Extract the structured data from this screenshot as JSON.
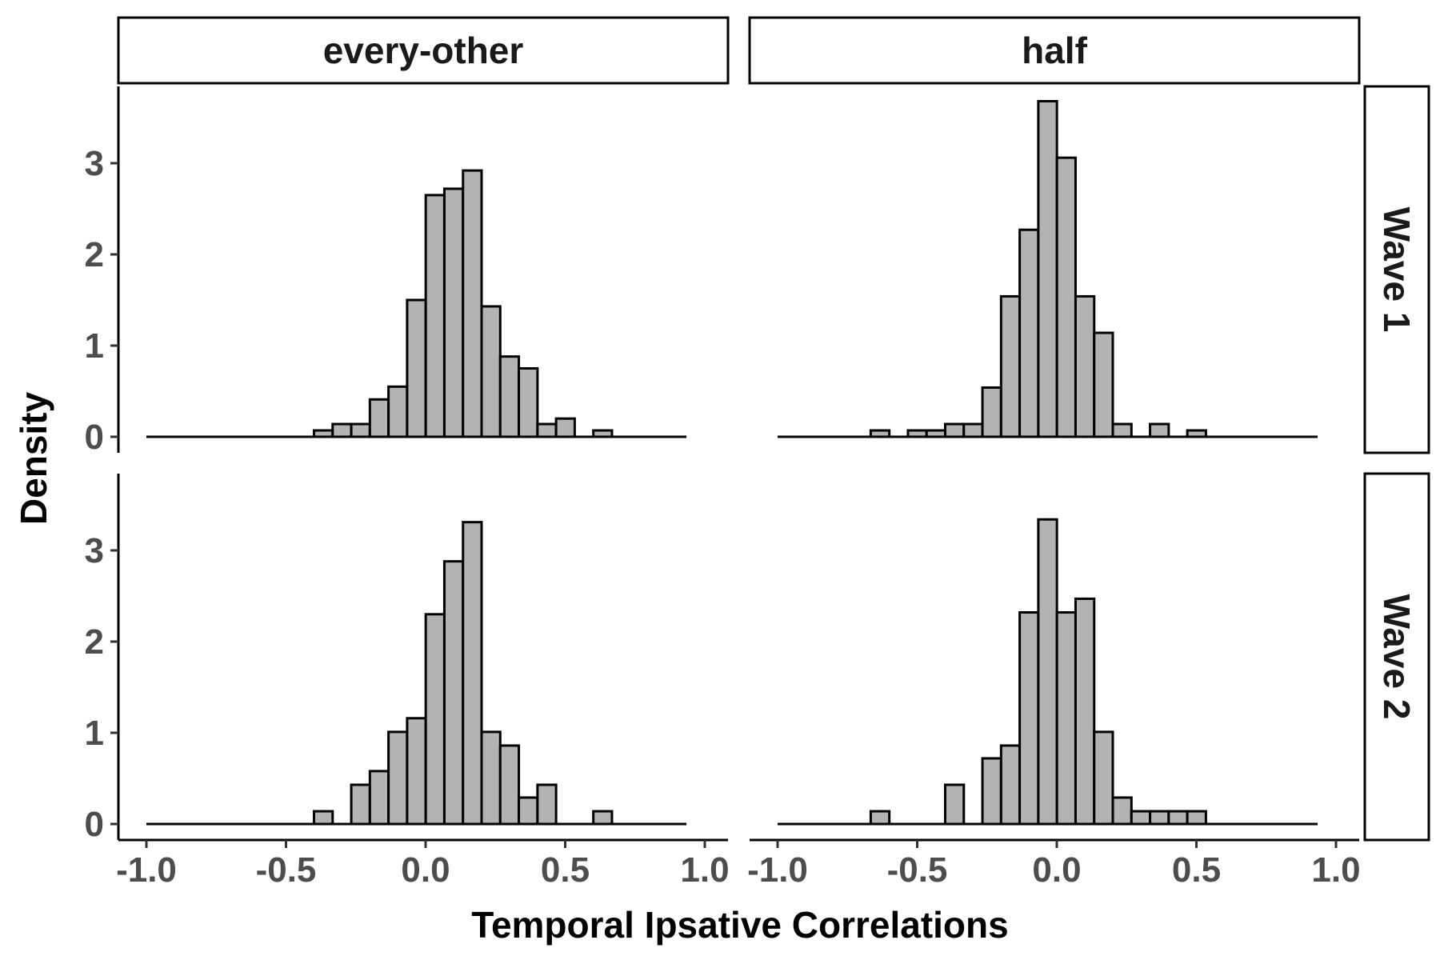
{
  "chart_data": {
    "type": "bar",
    "xlabel": "Temporal Ipsative Correlations",
    "ylabel": "Density",
    "xlim": [
      -1.0,
      1.0
    ],
    "ylim": [
      0,
      3.7
    ],
    "x_ticks": [
      "-1.0",
      "-0.5",
      "0.0",
      "0.5",
      "1.0"
    ],
    "y_ticks": [
      "0",
      "1",
      "2",
      "3"
    ],
    "bin_width": 0.0667,
    "bin_start": -1.0,
    "grid": false,
    "bar_fill": "#b3b3b3",
    "bar_edge": "#000000",
    "column_facets": [
      "every-other",
      "half"
    ],
    "row_facets": [
      "Wave 1",
      "Wave 2"
    ],
    "panels": [
      {
        "column": "every-other",
        "row": "Wave 1",
        "values": [
          0,
          0,
          0,
          0,
          0,
          0,
          0,
          0,
          0,
          0.07,
          0.14,
          0.14,
          0.41,
          0.55,
          1.5,
          2.65,
          2.72,
          2.92,
          1.43,
          0.88,
          0.75,
          0.14,
          0.2,
          0,
          0.07,
          0,
          0,
          0,
          0
        ]
      },
      {
        "column": "half",
        "row": "Wave 1",
        "values": [
          0,
          0,
          0,
          0,
          0,
          0.07,
          0,
          0.07,
          0.07,
          0.14,
          0.14,
          0.54,
          1.54,
          2.27,
          3.68,
          3.06,
          1.54,
          1.14,
          0.14,
          0,
          0.14,
          0,
          0.07,
          0,
          0,
          0,
          0,
          0,
          0
        ]
      },
      {
        "column": "every-other",
        "row": "Wave 2",
        "values": [
          0,
          0,
          0,
          0,
          0,
          0,
          0,
          0,
          0,
          0.14,
          0,
          0.43,
          0.58,
          1.01,
          1.16,
          2.3,
          2.88,
          3.31,
          1.01,
          0.86,
          0.29,
          0.43,
          0,
          0,
          0.14,
          0,
          0,
          0,
          0
        ]
      },
      {
        "column": "half",
        "row": "Wave 2",
        "values": [
          0,
          0,
          0,
          0,
          0,
          0.14,
          0,
          0,
          0,
          0.43,
          0,
          0.72,
          0.86,
          2.32,
          3.34,
          2.32,
          2.47,
          1.01,
          0.29,
          0.14,
          0.14,
          0.14,
          0.14,
          0,
          0,
          0,
          0,
          0,
          0
        ]
      }
    ]
  }
}
